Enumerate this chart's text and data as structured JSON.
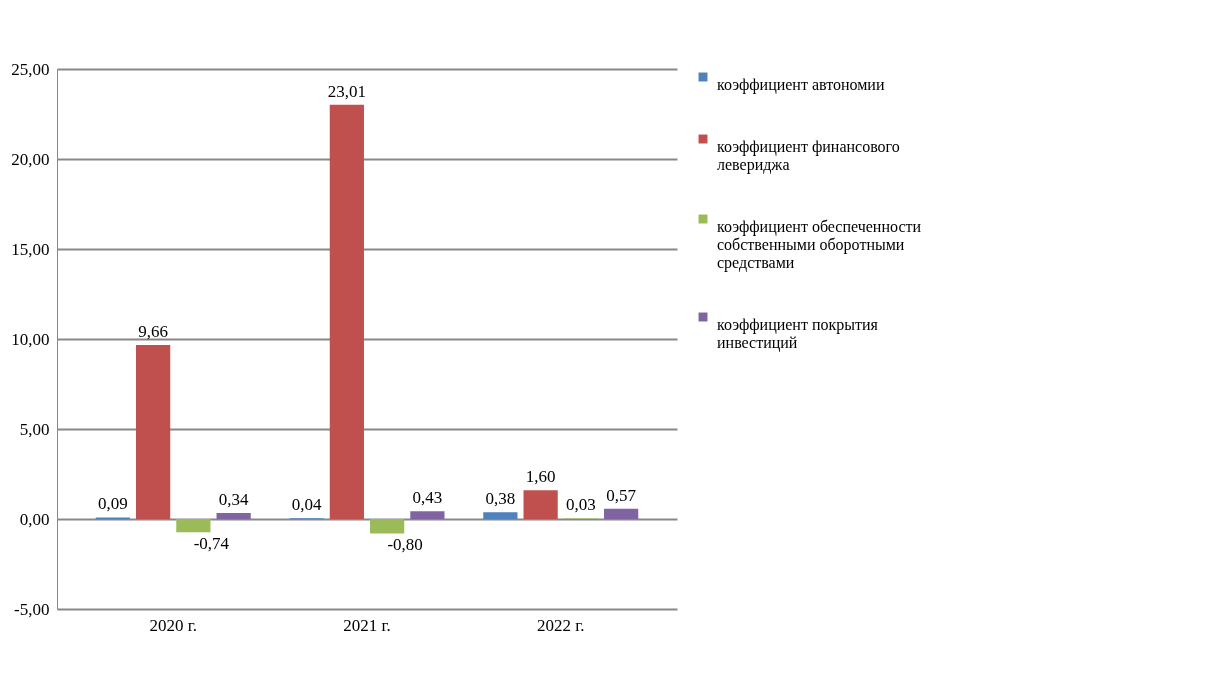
{
  "chart_data": {
    "type": "bar",
    "categories": [
      "2020 г.",
      "2021 г.",
      "2022 г."
    ],
    "series": [
      {
        "name": "коэффициент автономии",
        "color": "#4f81bd",
        "values": [
          0.09,
          0.04,
          0.38
        ],
        "value_labels": [
          "0,09",
          "0,04",
          "0,38"
        ]
      },
      {
        "name": "коэффициент финансового левериджа",
        "color": "#c0504d",
        "values": [
          9.66,
          23.01,
          1.6
        ],
        "value_labels": [
          "9,66",
          "23,01",
          "1,60"
        ]
      },
      {
        "name": "коэффициент обеспеченности собственными оборотными средствами",
        "color": "#9bbb59",
        "values": [
          -0.74,
          -0.8,
          0.03
        ],
        "value_labels": [
          "-0,74",
          "-0,80",
          "0,03"
        ]
      },
      {
        "name": " коэффициент покрытия инвестиций",
        "color": "#8064a2",
        "values": [
          0.34,
          0.43,
          0.57
        ],
        "value_labels": [
          "0,34",
          "0,43",
          "0,57"
        ]
      }
    ],
    "ylim": [
      -5,
      25
    ],
    "yticks": [
      {
        "value": -5,
        "label": "-5,00"
      },
      {
        "value": 0,
        "label": "0,00"
      },
      {
        "value": 5,
        "label": "5,00"
      },
      {
        "value": 10,
        "label": "10,00"
      },
      {
        "value": 15,
        "label": "15,00"
      },
      {
        "value": 20,
        "label": "20,00"
      },
      {
        "value": 25,
        "label": "25,00"
      }
    ],
    "grid": "y",
    "legend": "right"
  }
}
